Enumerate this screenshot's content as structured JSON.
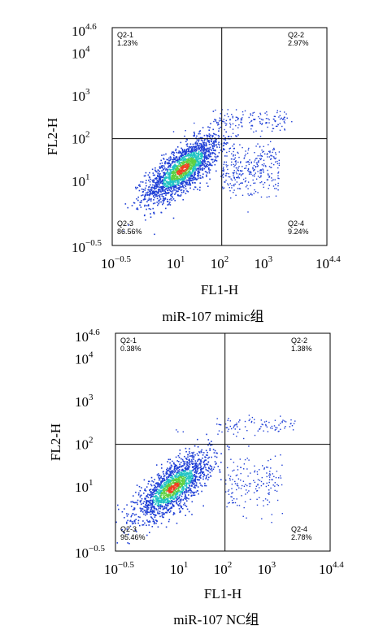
{
  "chart_data": [
    {
      "type": "scatter",
      "caption": "miR-107 mimic组",
      "xlabel": "FL1-H",
      "ylabel": "FL2-H",
      "xlim_log10": [
        -0.5,
        4.4
      ],
      "ylim_log10": [
        -0.5,
        4.6
      ],
      "x_ticks": [
        {
          "base": "10",
          "exp": "−0.5",
          "value": -0.5
        },
        {
          "base": "10",
          "exp": "1",
          "value": 1
        },
        {
          "base": "10",
          "exp": "2",
          "value": 2
        },
        {
          "base": "10",
          "exp": "3",
          "value": 3
        },
        {
          "base": "10",
          "exp": "4.4",
          "value": 4.4
        }
      ],
      "y_ticks": [
        {
          "base": "10",
          "exp": "4.6",
          "value": 4.6
        },
        {
          "base": "10",
          "exp": "4",
          "value": 4
        },
        {
          "base": "10",
          "exp": "3",
          "value": 3
        },
        {
          "base": "10",
          "exp": "2",
          "value": 2
        },
        {
          "base": "10",
          "exp": "1",
          "value": 1
        },
        {
          "base": "10",
          "exp": "−0.5",
          "value": -0.5
        }
      ],
      "gate_log10": {
        "x": 2.0,
        "y": 2.0
      },
      "quadrants": [
        {
          "name": "Q2-1",
          "percent": "1.23%",
          "position": "top-left"
        },
        {
          "name": "Q2-2",
          "percent": "2.97%",
          "position": "top-right"
        },
        {
          "name": "Q2-3",
          "percent": "86.56%",
          "position": "bottom-left"
        },
        {
          "name": "Q2-4",
          "percent": "9.24%",
          "position": "bottom-right"
        }
      ],
      "population_center_log10": {
        "x": 1.1,
        "y": 1.3
      }
    },
    {
      "type": "scatter",
      "caption": "miR-107 NC组",
      "xlabel": "FL1-H",
      "ylabel": "FL2-H",
      "xlim_log10": [
        -0.5,
        4.4
      ],
      "ylim_log10": [
        -0.5,
        4.6
      ],
      "x_ticks": [
        {
          "base": "10",
          "exp": "−0.5",
          "value": -0.5
        },
        {
          "base": "10",
          "exp": "1",
          "value": 1
        },
        {
          "base": "10",
          "exp": "2",
          "value": 2
        },
        {
          "base": "10",
          "exp": "3",
          "value": 3
        },
        {
          "base": "10",
          "exp": "4.4",
          "value": 4.4
        }
      ],
      "y_ticks": [
        {
          "base": "10",
          "exp": "4.6",
          "value": 4.6
        },
        {
          "base": "10",
          "exp": "4",
          "value": 4
        },
        {
          "base": "10",
          "exp": "3",
          "value": 3
        },
        {
          "base": "10",
          "exp": "2",
          "value": 2
        },
        {
          "base": "10",
          "exp": "1",
          "value": 1
        },
        {
          "base": "10",
          "exp": "−0.5",
          "value": -0.5
        }
      ],
      "gate_log10": {
        "x": 2.0,
        "y": 2.0
      },
      "quadrants": [
        {
          "name": "Q2-1",
          "percent": "0.38%",
          "position": "top-left"
        },
        {
          "name": "Q2-2",
          "percent": "1.38%",
          "position": "top-right"
        },
        {
          "name": "Q2-3",
          "percent": "95.46%",
          "position": "bottom-left"
        },
        {
          "name": "Q2-4",
          "percent": "2.78%",
          "position": "bottom-right"
        }
      ],
      "population_center_log10": {
        "x": 0.8,
        "y": 1.0
      }
    }
  ],
  "colors": {
    "low": "#1f3fd6",
    "mid": "#22c4c4",
    "high": "#5fd040",
    "peak": "#f04020",
    "axis": "#000000"
  }
}
